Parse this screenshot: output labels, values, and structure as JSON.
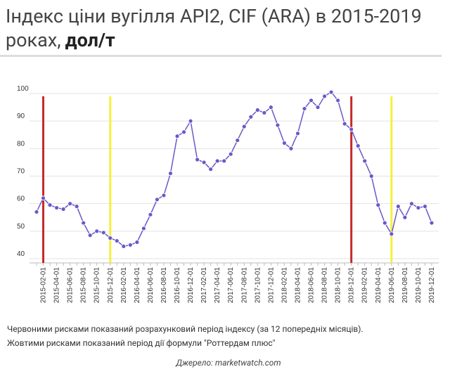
{
  "chart_data": {
    "type": "line",
    "title": "Індекс ціни вугілля API2, CIF (ARA) в 2015-2019 роках,",
    "title_unit": "дол/т",
    "categories": [
      null,
      "2015-02-01",
      null,
      "2015-04-01",
      null,
      "2015-06-01",
      null,
      "2015-08-01",
      null,
      "2015-10-01",
      null,
      "2015-12-01",
      null,
      "2016-02-01",
      null,
      "2016-04-01",
      null,
      "2016-06-01",
      null,
      "2016-08-01",
      null,
      "2016-10-01",
      null,
      "2016-12-01",
      null,
      "2017-02-01",
      null,
      "2017-04-01",
      null,
      "2017-06-01",
      null,
      "2017-08-01",
      null,
      "2017-10-01",
      null,
      "2017-12-01",
      null,
      "2018-02-01",
      null,
      "2018-04-01",
      null,
      "2018-06-01",
      null,
      "2018-08-01",
      null,
      "2018-10-01",
      null,
      "2018-12-01",
      null,
      "2019-02-01",
      null,
      "2019-04-01",
      null,
      "2019-06-01",
      null,
      "2019-08-01",
      null,
      "2019-10-01",
      null,
      "2019-12-01"
    ],
    "series": [
      {
        "color": "#6a58c8",
        "values": [
          57,
          62,
          59.5,
          58.5,
          58,
          60,
          59,
          53,
          48.5,
          50,
          49.5,
          47.5,
          46.5,
          44.5,
          45,
          46,
          51,
          56,
          61.5,
          63,
          71,
          84.5,
          86,
          90,
          76,
          75,
          72.5,
          75.5,
          75.5,
          78,
          83,
          88,
          91.5,
          94,
          93,
          95,
          88.5,
          82,
          80,
          85.5,
          94.5,
          97.5,
          95,
          99,
          100.5,
          97.5,
          89,
          87,
          81,
          75.5,
          70,
          59.5,
          53,
          49,
          59,
          55,
          60,
          58.5,
          59,
          53
        ]
      }
    ],
    "reference_lines": [
      {
        "x": "2015-02-01",
        "color": "#c62828"
      },
      {
        "x": "2018-12-01",
        "color": "#c62828"
      },
      {
        "x": "2015-12-01",
        "color": "#f5f03a"
      },
      {
        "x": "2019-06-01",
        "color": "#f5f03a"
      }
    ],
    "ylim": [
      40,
      100
    ],
    "yticks": [
      40,
      50,
      60,
      70,
      80,
      90,
      100
    ],
    "grid": true,
    "notes": [
      "Червоними рисками показаний розрахунковий період індексу (за 12 попередніх місяців).",
      "Жовтими рисками показаний період дії формули \"Роттердам плюс\""
    ],
    "source": "Джерело: marketwatch.com"
  }
}
